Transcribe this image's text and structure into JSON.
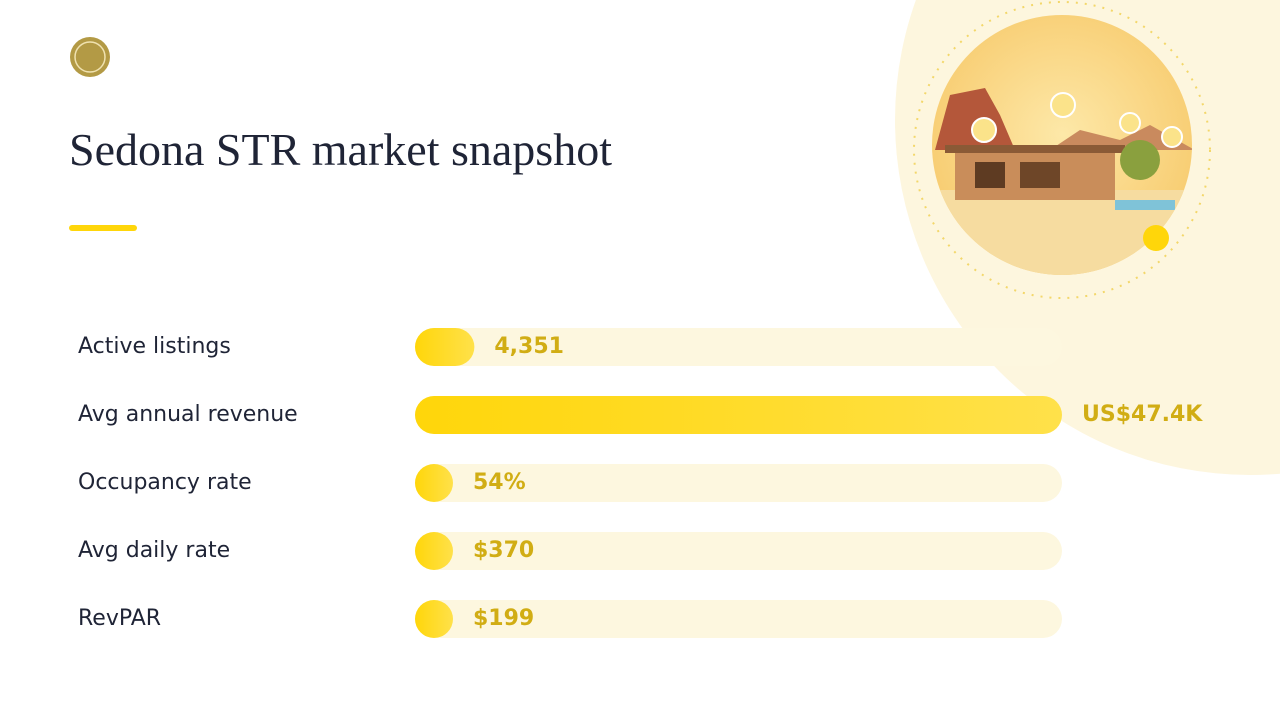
{
  "chart_data": {
    "type": "bar",
    "orientation": "horizontal",
    "title": "Sedona STR market snapshot",
    "categories": [
      "Active listings",
      "Avg annual revenue",
      "Occupancy rate",
      "Avg daily rate",
      "RevPAR"
    ],
    "values": [
      4351,
      47400,
      54,
      370,
      199
    ],
    "value_labels": [
      "4,351",
      "US$47.4K",
      "54%",
      "$370",
      "$199"
    ],
    "color": "#ffd60a"
  }
}
